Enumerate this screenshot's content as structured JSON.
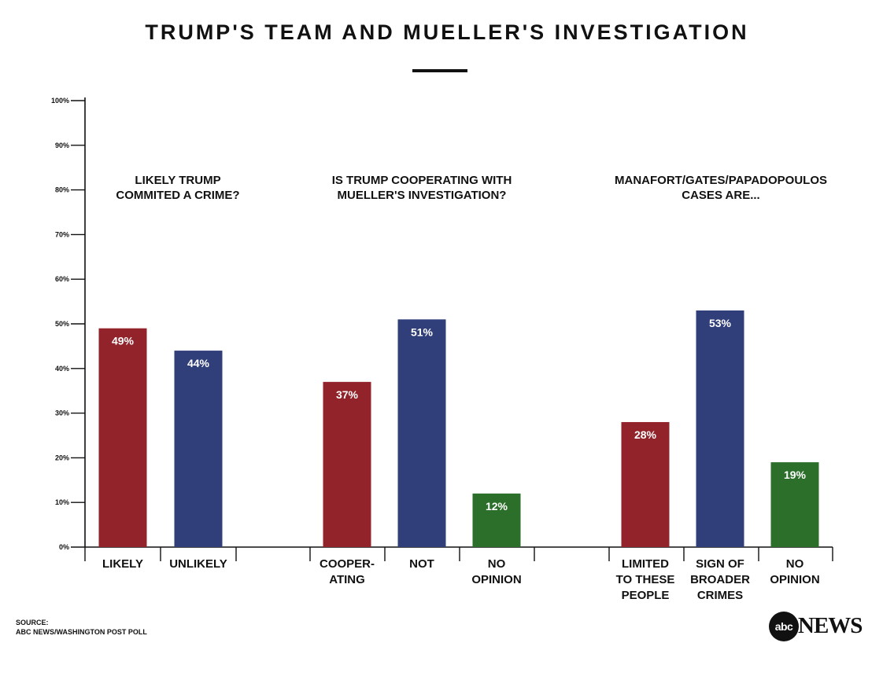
{
  "title": "TRUMP'S TEAM AND MUELLER'S INVESTIGATION",
  "source": {
    "label": "SOURCE:",
    "text": "ABC NEWS/WASHINGTON POST POLL"
  },
  "logo": {
    "circle_text": "abc",
    "text": "NEWS"
  },
  "colors": {
    "red": "#92232a",
    "blue": "#303f79",
    "green": "#2b6f2b",
    "axis": "#111111"
  },
  "chart_data": {
    "type": "bar",
    "ylim": [
      0,
      100
    ],
    "yticks": [
      "0%",
      "10%",
      "20%",
      "30%",
      "40%",
      "50%",
      "60%",
      "70%",
      "80%",
      "90%",
      "100%"
    ],
    "groups": [
      {
        "question": [
          "LIKELY TRUMP",
          "COMMITED A CRIME?"
        ],
        "bars": [
          {
            "category": [
              "LIKELY"
            ],
            "value": 49,
            "label": "49%",
            "color": "red"
          },
          {
            "category": [
              "UNLIKELY"
            ],
            "value": 44,
            "label": "44%",
            "color": "blue"
          }
        ]
      },
      {
        "question": [
          "IS TRUMP COOPERATING WITH",
          "MUELLER'S INVESTIGATION?"
        ],
        "bars": [
          {
            "category": [
              "COOPER-",
              "ATING"
            ],
            "value": 37,
            "label": "37%",
            "color": "red"
          },
          {
            "category": [
              "NOT"
            ],
            "value": 51,
            "label": "51%",
            "color": "blue"
          },
          {
            "category": [
              "NO",
              "OPINION"
            ],
            "value": 12,
            "label": "12%",
            "color": "green"
          }
        ]
      },
      {
        "question": [
          "MANAFORT/GATES/PAPADOPOULOS",
          "CASES ARE..."
        ],
        "bars": [
          {
            "category": [
              "LIMITED",
              "TO THESE",
              "PEOPLE"
            ],
            "value": 28,
            "label": "28%",
            "color": "red"
          },
          {
            "category": [
              "SIGN OF",
              "BROADER",
              "CRIMES"
            ],
            "value": 53,
            "label": "53%",
            "color": "blue"
          },
          {
            "category": [
              "NO",
              "OPINION"
            ],
            "value": 19,
            "label": "19%",
            "color": "green"
          }
        ]
      }
    ]
  }
}
